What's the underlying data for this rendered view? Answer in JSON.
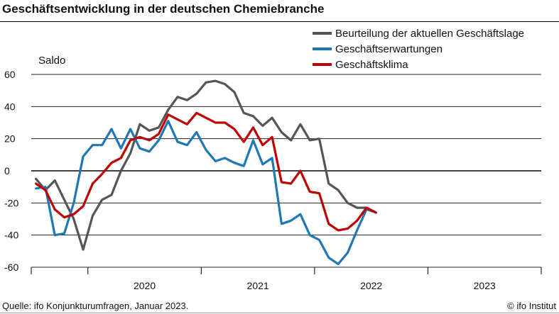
{
  "header": {
    "title": "Geschäftsentwicklung in der deutschen Chemiebranche"
  },
  "footer": {
    "source": "Quelle: ifo Konjunkturumfragen, Januar 2023.",
    "credit": "© ifo Institut"
  },
  "chart_data": {
    "type": "line",
    "title": "Geschäftsentwicklung in der deutschen Chemiebranche",
    "ylabel": "Saldo",
    "xlabel": "",
    "ylim": [
      -60,
      60
    ],
    "yticks": [
      60,
      40,
      20,
      0,
      -20,
      -40,
      -60
    ],
    "year_labels": [
      "2020",
      "2021",
      "2022",
      "2023"
    ],
    "x_start": "2019-07",
    "x_end": "2023-12",
    "legend_position": "top-right",
    "series": [
      {
        "name": "Beurteilung der aktuellen Geschäftslage",
        "color": "#555555",
        "values": [
          -5,
          -12,
          -6,
          -18,
          -30,
          -49,
          -28,
          -18,
          -15,
          0,
          11,
          29,
          25,
          27,
          38,
          46,
          44,
          48,
          55,
          56,
          54,
          49,
          36,
          34,
          28,
          33,
          24,
          19,
          29,
          19,
          20,
          -8,
          -12,
          -20,
          -23,
          -23,
          -26
        ]
      },
      {
        "name": "Geschäftserwartungen",
        "color": "#1f77b4",
        "values": [
          -11,
          -10,
          -40,
          -39,
          -20,
          9,
          16,
          16,
          26,
          14,
          26,
          14,
          12,
          19,
          31,
          18,
          16,
          24,
          13,
          6,
          8,
          5,
          3,
          19,
          4,
          8,
          -33,
          -31,
          -27,
          -40,
          -43,
          -54,
          -58,
          -51,
          -37,
          -24,
          -26
        ]
      },
      {
        "name": "Geschäftsklima",
        "color": "#c00000",
        "values": [
          -8,
          -12,
          -24,
          -29,
          -27,
          -22,
          -8,
          -2,
          5,
          8,
          19,
          21,
          19,
          23,
          35,
          32,
          29,
          36,
          33,
          30,
          30,
          26,
          18,
          27,
          16,
          21,
          -7,
          -8,
          0,
          -13,
          -14,
          -33,
          -37,
          -36,
          -31,
          -23,
          -26
        ]
      }
    ]
  }
}
